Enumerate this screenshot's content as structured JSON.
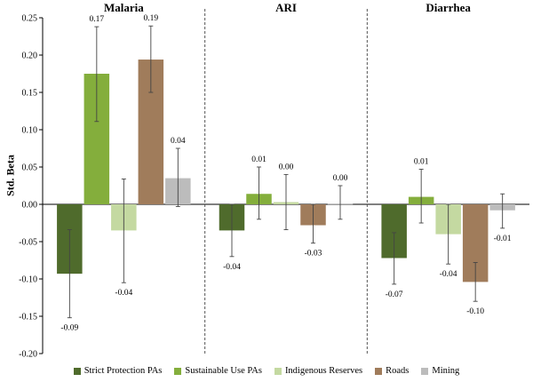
{
  "chart_data": {
    "type": "bar",
    "ylabel": "Std. Beta",
    "ylim": [
      -0.2,
      0.25
    ],
    "ytick_step": 0.05,
    "grid": false,
    "legend_placement": "bottom",
    "panels": [
      "Malaria",
      "ARI",
      "Diarrhea"
    ],
    "series": [
      {
        "name": "Strict Protection PAs",
        "color": "#4f6b2c",
        "values": [
          -0.093,
          -0.035,
          -0.072
        ],
        "err_low": [
          -0.152,
          -0.07,
          -0.107
        ],
        "err_high": [
          -0.034,
          0.0,
          -0.038
        ],
        "labels": [
          "-0.09",
          "-0.04",
          "-0.07"
        ]
      },
      {
        "name": "Sustainable Use PAs",
        "color": "#84ae3c",
        "values": [
          0.175,
          0.014,
          0.01
        ],
        "err_low": [
          0.111,
          -0.02,
          -0.025
        ],
        "err_high": [
          0.238,
          0.05,
          0.047
        ],
        "labels": [
          "0.17",
          "0.01",
          "0.01"
        ]
      },
      {
        "name": "Indigenous Reserves",
        "color": "#c4d9a1",
        "values": [
          -0.035,
          0.003,
          -0.04
        ],
        "err_low": [
          -0.105,
          -0.034,
          -0.08
        ],
        "err_high": [
          0.034,
          0.04,
          0.0
        ],
        "labels": [
          "-0.04",
          "0.00",
          "-0.04"
        ]
      },
      {
        "name": "Roads",
        "color": "#a07c5b",
        "values": [
          0.194,
          -0.028,
          -0.104
        ],
        "err_low": [
          0.15,
          -0.052,
          -0.13
        ],
        "err_high": [
          0.239,
          0.0,
          -0.078
        ],
        "labels": [
          "0.19",
          "-0.03",
          "-0.10"
        ]
      },
      {
        "name": "Mining",
        "color": "#bcbcbc",
        "values": [
          0.035,
          0.001,
          -0.008
        ],
        "err_low": [
          -0.003,
          -0.02,
          -0.032
        ],
        "err_high": [
          0.075,
          0.025,
          0.014
        ],
        "labels": [
          "0.04",
          "0.00",
          "-0.01"
        ]
      }
    ]
  }
}
